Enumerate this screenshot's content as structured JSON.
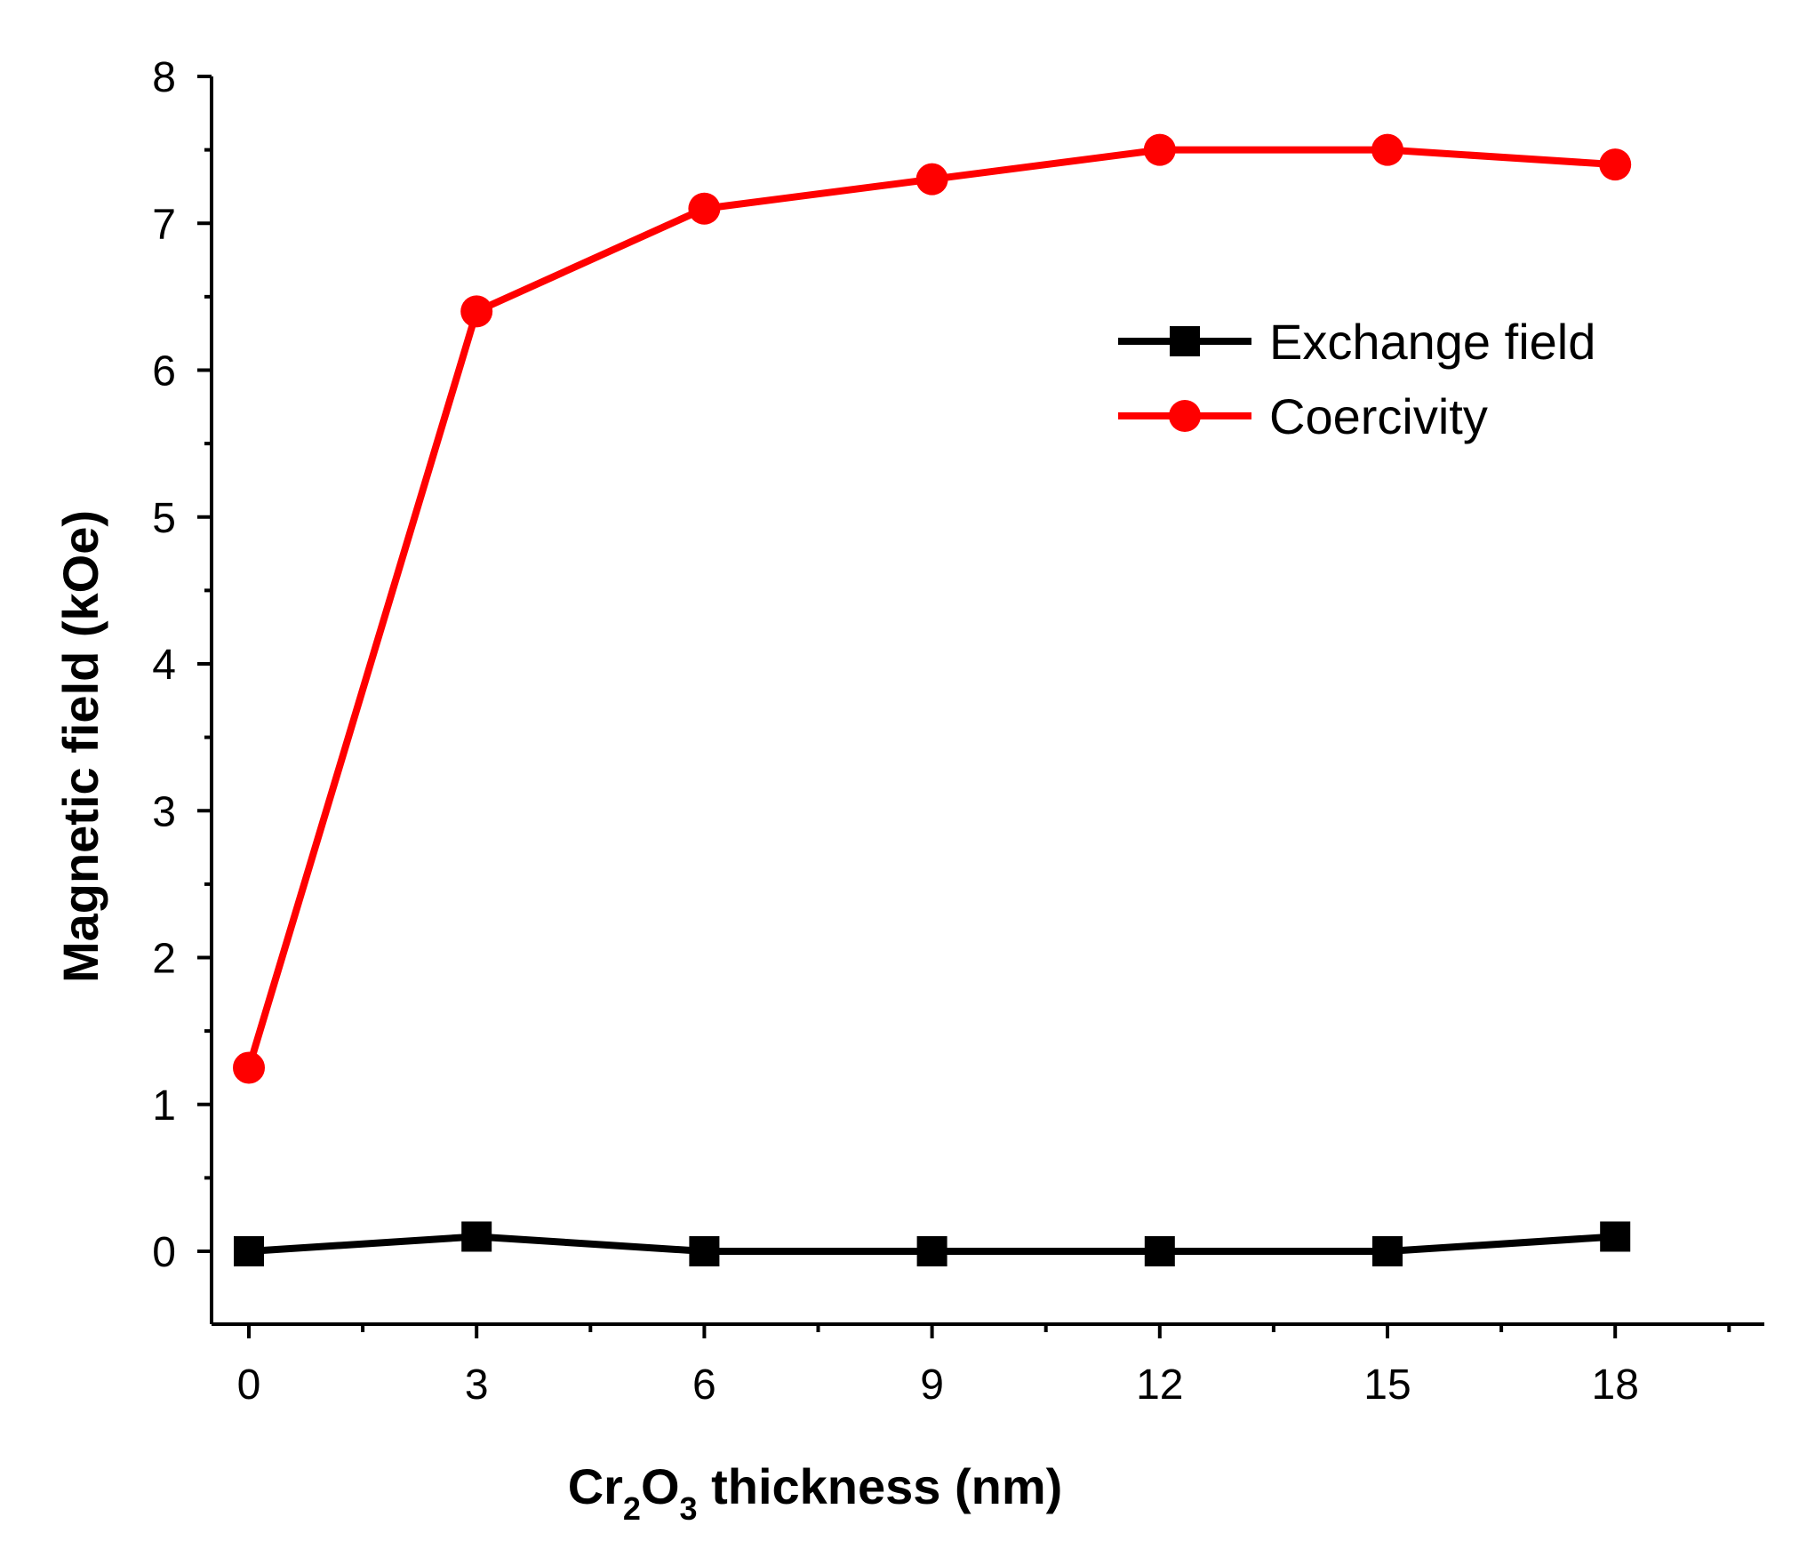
{
  "chart_data": {
    "type": "line",
    "title": "",
    "x": [
      0,
      3,
      6,
      9,
      12,
      15,
      18
    ],
    "xlim": [
      -0.5,
      20
    ],
    "ylim": [
      -0.5,
      8
    ],
    "x_major_ticks": [
      0,
      3,
      6,
      9,
      12,
      15,
      18
    ],
    "y_major_ticks": [
      0,
      1,
      2,
      3,
      4,
      5,
      6,
      7,
      8
    ],
    "x_tick_labels": [
      "0",
      "3",
      "6",
      "9",
      "12",
      "15",
      "18"
    ],
    "y_tick_labels": [
      "0",
      "1",
      "2",
      "3",
      "4",
      "5",
      "6",
      "7",
      "8"
    ],
    "xlabel": {
      "prefix": "Cr",
      "sub1": "2",
      "mid": "O",
      "sub2": "3",
      "suffix": " thickness (nm)"
    },
    "ylabel": "Magnetic field (kOe)",
    "grid": false,
    "legend_position": "upper-right",
    "series": [
      {
        "name": "Exchange field",
        "marker": "square",
        "color": "#000000",
        "values": [
          0,
          0.1,
          0,
          0,
          0,
          0,
          0.1
        ]
      },
      {
        "name": "Coercivity",
        "marker": "circle",
        "color": "#ff0000",
        "values": [
          1.25,
          6.4,
          7.1,
          7.3,
          7.5,
          7.5,
          7.4
        ]
      }
    ]
  }
}
